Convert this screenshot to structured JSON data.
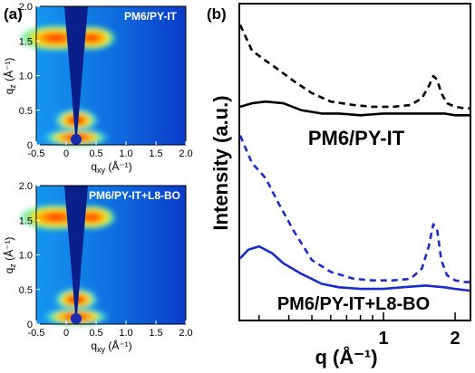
{
  "panels": [
    {
      "id": "a",
      "label": "(a)",
      "chart_data": [
        {
          "type": "heatmap",
          "title": "PM6/PY-IT",
          "xlabel_main": "q",
          "xlabel_sub": "xy",
          "xlabel_unit": " (Å⁻¹)",
          "ylabel_main": "q",
          "ylabel_sub": "z",
          "ylabel_unit": " (Å⁻¹)",
          "xlim": [
            -0.5,
            2.0
          ],
          "ylim": [
            0,
            2.0
          ],
          "xticks": [
            "-0.5",
            "0",
            "0.5",
            "1.0",
            "1.5",
            "2.0"
          ],
          "yticks": [
            "0",
            "0.5",
            "1.0",
            "1.5",
            "2.0"
          ],
          "colormap": "jet"
        },
        {
          "type": "heatmap",
          "title": "PM6/PY-IT+L8-BO",
          "xlabel_main": "q",
          "xlabel_sub": "xy",
          "xlabel_unit": " (Å⁻¹)",
          "ylabel_main": "q",
          "ylabel_sub": "z",
          "ylabel_unit": " (Å⁻¹)",
          "xlim": [
            -0.5,
            2.0
          ],
          "ylim": [
            0,
            2.0
          ],
          "xticks": [
            "-0.5",
            "0",
            "0.5",
            "1.0",
            "1.5",
            "2.0"
          ],
          "yticks": [
            "0",
            "0.5",
            "1.0",
            "1.5",
            "2.0"
          ],
          "colormap": "jet"
        }
      ]
    },
    {
      "id": "b",
      "label": "(b)",
      "chart_data": {
        "type": "line",
        "xlabel": "q (Å⁻¹)",
        "ylabel": "Intensity (a.u.)",
        "xscale": "log",
        "xlim": [
          0.25,
          2.3
        ],
        "xticks": [
          "1",
          "2"
        ],
        "yticks": [],
        "groups": [
          {
            "label": "PM6/PY-IT",
            "color": "#000000",
            "series": [
              {
                "style": "dashed",
                "x": [
                  0.25,
                  0.28,
                  0.32,
                  0.36,
                  0.42,
                  0.5,
                  0.6,
                  0.75,
                  0.9,
                  1.1,
                  1.3,
                  1.45,
                  1.55,
                  1.62,
                  1.68,
                  1.75,
                  1.85,
                  2.0,
                  2.2,
                  2.3
                ],
                "y": [
                  1.73,
                  1.58,
                  1.52,
                  1.47,
                  1.4,
                  1.33,
                  1.28,
                  1.26,
                  1.25,
                  1.25,
                  1.26,
                  1.3,
                  1.37,
                  1.43,
                  1.41,
                  1.33,
                  1.27,
                  1.25,
                  1.24,
                  1.24
                ]
              },
              {
                "style": "solid",
                "x": [
                  0.25,
                  0.28,
                  0.32,
                  0.38,
                  0.45,
                  0.55,
                  0.65,
                  0.8,
                  1.0,
                  1.2,
                  1.5,
                  1.8,
                  2.0,
                  2.3
                ],
                "y": [
                  1.25,
                  1.27,
                  1.28,
                  1.27,
                  1.23,
                  1.21,
                  1.21,
                  1.2,
                  1.21,
                  1.21,
                  1.21,
                  1.21,
                  1.2,
                  1.2
                ]
              }
            ]
          },
          {
            "label": "PM6/PY-IT+L8-BO",
            "color": "#1a2dcc",
            "series": [
              {
                "style": "dashed",
                "x": [
                  0.25,
                  0.28,
                  0.32,
                  0.36,
                  0.42,
                  0.5,
                  0.6,
                  0.75,
                  0.9,
                  1.1,
                  1.3,
                  1.45,
                  1.55,
                  1.62,
                  1.68,
                  1.75,
                  1.85,
                  2.0,
                  2.2,
                  2.3
                ],
                "y": [
                  1.08,
                  0.92,
                  0.83,
                  0.69,
                  0.52,
                  0.35,
                  0.28,
                  0.24,
                  0.23,
                  0.23,
                  0.24,
                  0.3,
                  0.43,
                  0.56,
                  0.53,
                  0.35,
                  0.26,
                  0.23,
                  0.22,
                  0.22
                ]
              },
              {
                "style": "solid",
                "x": [
                  0.25,
                  0.27,
                  0.3,
                  0.34,
                  0.38,
                  0.45,
                  0.55,
                  0.65,
                  0.8,
                  1.0,
                  1.2,
                  1.5,
                  1.8,
                  2.0,
                  2.3
                ],
                "y": [
                  0.36,
                  0.41,
                  0.43,
                  0.39,
                  0.33,
                  0.27,
                  0.21,
                  0.19,
                  0.18,
                  0.18,
                  0.19,
                  0.2,
                  0.19,
                  0.18,
                  0.17
                ]
              }
            ]
          }
        ]
      }
    }
  ]
}
